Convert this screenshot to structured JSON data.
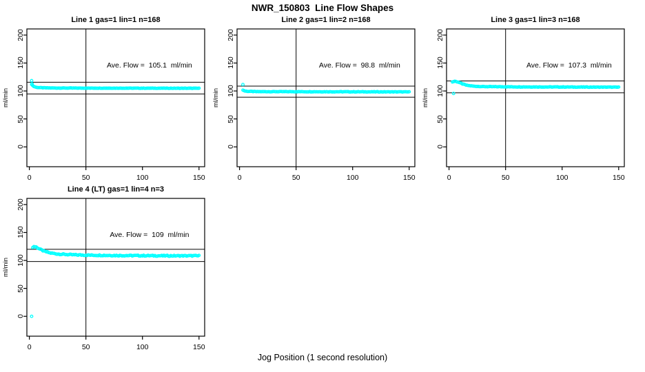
{
  "title": "NWR_150803  Line Flow Shapes",
  "x_axis_label": "Jog Position (1 second resolution)",
  "colors": {
    "points": "#00ffff",
    "axis": "#000000",
    "background": "#ffffff"
  },
  "axes": {
    "x_ticks": [
      0,
      50,
      100,
      150
    ],
    "y_ticks": [
      0,
      50,
      100,
      150,
      200
    ],
    "x_range": [
      -2.2,
      155
    ],
    "y_range": [
      -35.5,
      211
    ],
    "y_axis_label": "ml/min",
    "grid": false
  },
  "chart_data": [
    {
      "type": "scatter",
      "title": "Line 1 gas=1 lin=1 n=168",
      "ave_flow": 105.1,
      "annotation": "Ave. Flow =  105.1  ml/min",
      "ref_lines_y": [
        115.6,
        94.6
      ],
      "ref_line_x": 50,
      "profile_keypoints": [
        [
          2,
          112
        ],
        [
          3,
          109.5
        ],
        [
          4,
          108
        ],
        [
          6,
          106.5
        ],
        [
          10,
          105.8
        ],
        [
          20,
          105.3
        ],
        [
          50,
          105.1
        ],
        [
          150,
          104.8
        ]
      ],
      "outliers": [
        [
          2,
          118.5
        ],
        [
          2.5,
          112.5
        ]
      ],
      "jitter": 0.3,
      "x_step": 1
    },
    {
      "type": "scatter",
      "title": "Line 2 gas=1 lin=2 n=168",
      "ave_flow": 98.8,
      "annotation": "Ave. Flow =  98.8  ml/min",
      "ref_lines_y": [
        108.7,
        88.9
      ],
      "ref_line_x": 50,
      "profile_keypoints": [
        [
          3,
          101.5
        ],
        [
          5,
          99.8
        ],
        [
          8,
          99.2
        ],
        [
          15,
          98.8
        ],
        [
          50,
          98.7
        ],
        [
          150,
          98.3
        ]
      ],
      "outliers": [
        [
          3,
          111.5
        ]
      ],
      "jitter": 0.4,
      "x_step": 1
    },
    {
      "type": "scatter",
      "title": "Line 3 gas=1 lin=3 n=168",
      "ave_flow": 107.3,
      "annotation": "Ave. Flow =  107.3  ml/min",
      "ref_lines_y": [
        118.0,
        96.6
      ],
      "ref_line_x": 50,
      "profile_keypoints": [
        [
          3,
          116
        ],
        [
          5,
          117.5
        ],
        [
          8,
          116
        ],
        [
          12,
          112.5
        ],
        [
          16,
          110
        ],
        [
          22,
          108.5
        ],
        [
          30,
          107.8
        ],
        [
          60,
          107.3
        ],
        [
          150,
          106.8
        ]
      ],
      "outliers": [
        [
          4,
          95.5
        ]
      ],
      "jitter": 0.4,
      "x_step": 1
    },
    {
      "type": "scatter",
      "title": "Line 4 (LT) gas=1 lin=4 n=3",
      "ave_flow": 109,
      "annotation": "Ave. Flow =  109  ml/min",
      "ref_lines_y": [
        119.9,
        98.1
      ],
      "ref_line_x": 50,
      "profile_keypoints": [
        [
          3,
          123
        ],
        [
          4,
          125
        ],
        [
          6,
          124
        ],
        [
          9,
          120.5
        ],
        [
          13,
          116.5
        ],
        [
          18,
          113.5
        ],
        [
          25,
          111.5
        ],
        [
          35,
          110.3
        ],
        [
          50,
          109.5
        ],
        [
          80,
          108.8
        ],
        [
          120,
          108.3
        ],
        [
          150,
          108.3
        ]
      ],
      "outliers": [
        [
          2,
          0
        ]
      ],
      "jitter": 0.9,
      "x_step": 1
    }
  ]
}
